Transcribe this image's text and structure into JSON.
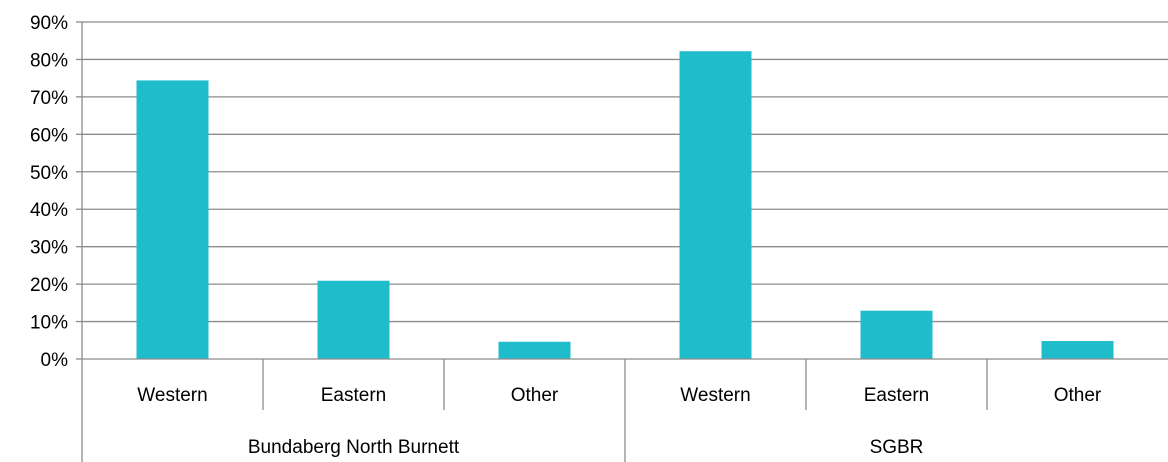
{
  "chart_data": {
    "type": "bar",
    "groups": [
      {
        "label": "Bundaberg North Burnett",
        "categories": [
          "Western",
          "Eastern",
          "Other"
        ]
      },
      {
        "label": "SGBR",
        "categories": [
          "Western",
          "Eastern",
          "Other"
        ]
      }
    ],
    "categories": [
      "Western",
      "Eastern",
      "Other",
      "Western",
      "Eastern",
      "Other"
    ],
    "values": [
      74.4,
      20.9,
      4.6,
      82.2,
      12.9,
      4.8
    ],
    "ylim": [
      0,
      90
    ],
    "yticks": [
      "0%",
      "10%",
      "20%",
      "30%",
      "40%",
      "50%",
      "60%",
      "70%",
      "80%",
      "90%"
    ],
    "title": "",
    "xlabel": "",
    "ylabel": "",
    "grid": true,
    "legend": "none",
    "bar_color": "#1FBDCC",
    "grid_color": "#8C8C8C"
  }
}
